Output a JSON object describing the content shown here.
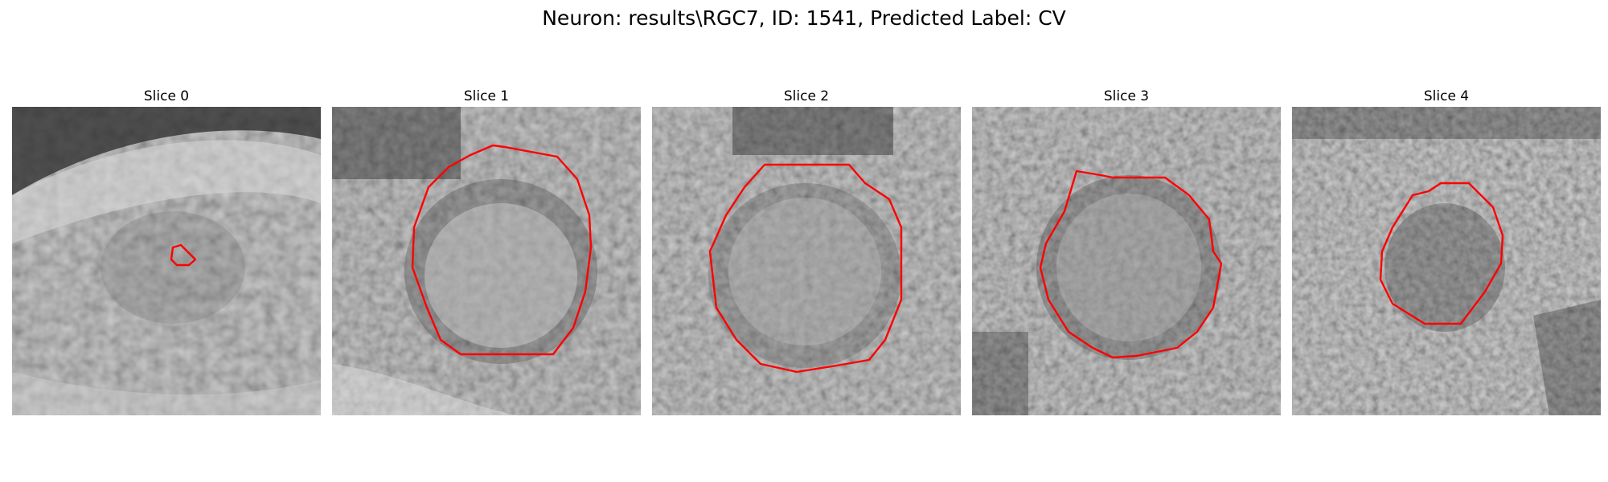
{
  "figure": {
    "title": "Neuron: results\\RGC7, ID: 1541, Predicted Label: CV",
    "contour_color": "#ff0000"
  },
  "panels": [
    {
      "title": "Slice 0"
    },
    {
      "title": "Slice 1"
    },
    {
      "title": "Slice 2"
    },
    {
      "title": "Slice 3"
    },
    {
      "title": "Slice 4"
    }
  ]
}
